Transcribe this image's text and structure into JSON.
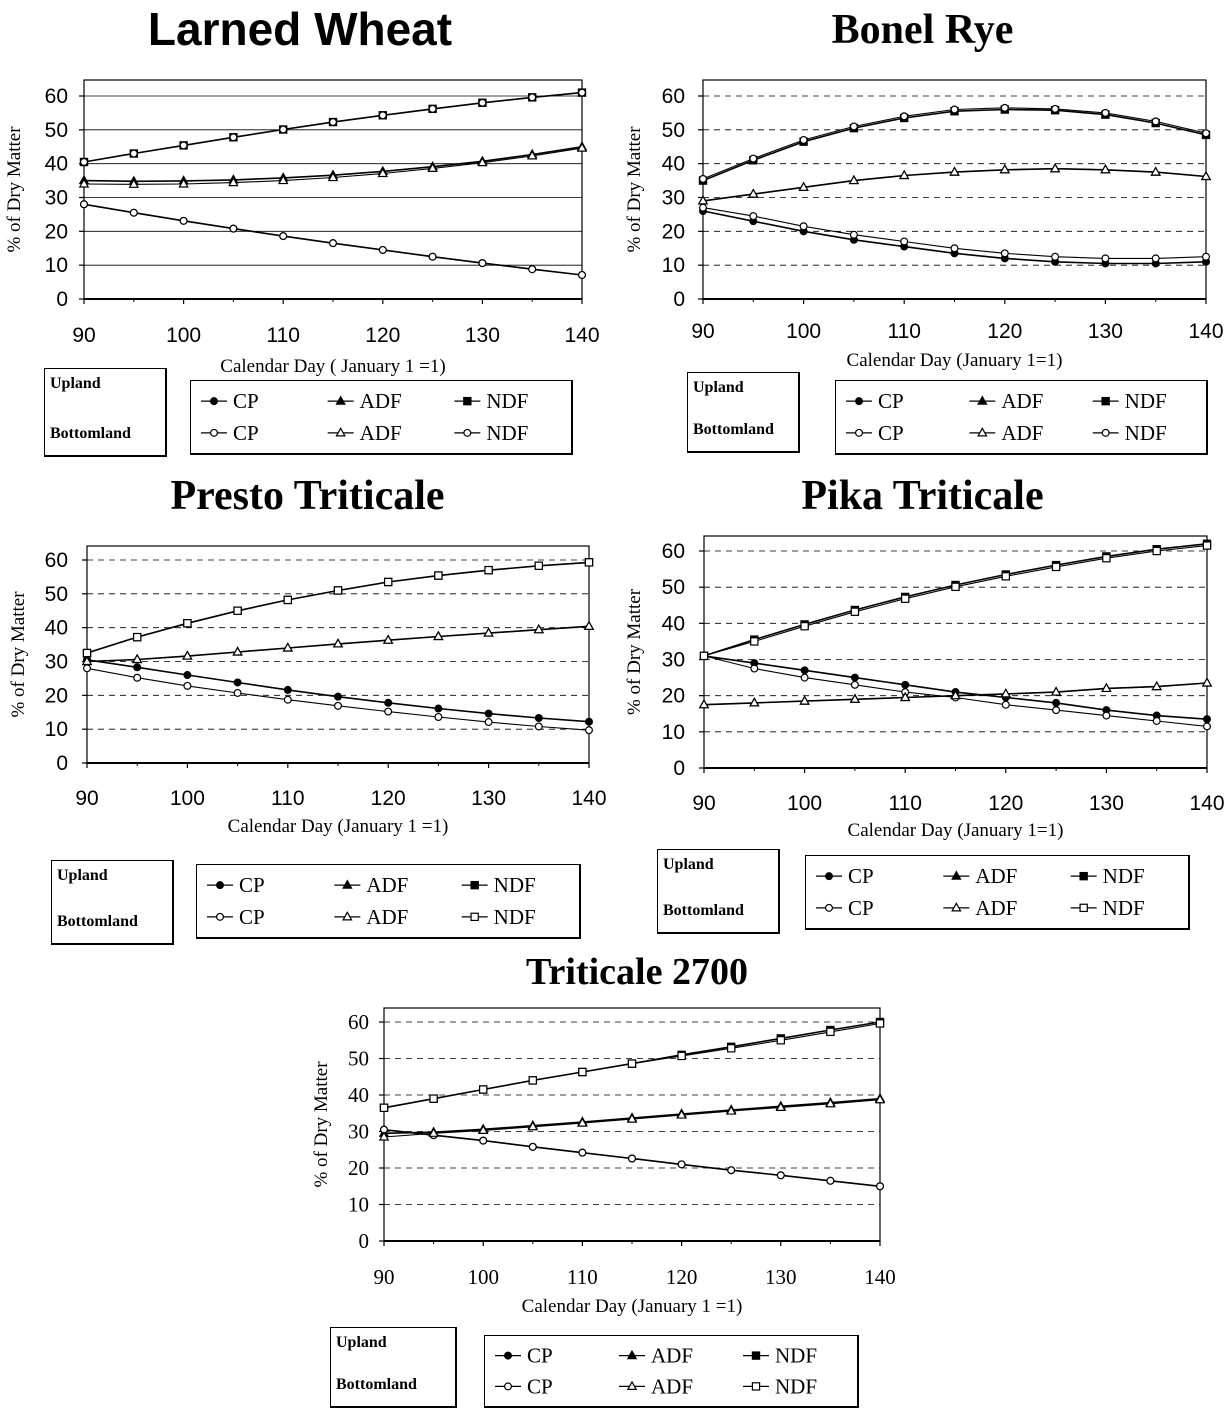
{
  "chart_data": [
    {
      "type": "line",
      "title": "Larned  Wheat",
      "xlabel": "Calendar Day ( January 1 =1)",
      "ylabel": "% of Dry Matter",
      "xlim": [
        90,
        140
      ],
      "ylim": [
        0,
        60
      ],
      "xticks": [
        "90",
        "100",
        "110",
        "120",
        "130",
        "140"
      ],
      "yticks": [
        "0",
        "10",
        "20",
        "30",
        "40",
        "50",
        "60"
      ],
      "grid": "horizontal",
      "land_labels": [
        "Upland",
        "Bottomland"
      ],
      "legend": {
        "upland": [
          "CP",
          "ADF",
          "NDF"
        ],
        "bottomland": [
          "CP",
          "ADF",
          "NDF"
        ]
      },
      "x": [
        90,
        95,
        100,
        105,
        110,
        115,
        120,
        125,
        130,
        135,
        140
      ],
      "series": [
        {
          "name": "CP",
          "group": "Upland",
          "marker": "dot-filled",
          "values": [
            28,
            25.5,
            23.1,
            20.8,
            18.6,
            16.5,
            14.5,
            12.5,
            10.6,
            8.8,
            7.1
          ]
        },
        {
          "name": "ADF",
          "group": "Upland",
          "marker": "triangle-filled",
          "values": [
            35,
            34.8,
            34.9,
            35.2,
            35.8,
            36.6,
            37.7,
            39.1,
            40.7,
            42.7,
            45
          ]
        },
        {
          "name": "NDF",
          "group": "Upland",
          "marker": "square-filled",
          "values": [
            40.5,
            43,
            45.4,
            47.8,
            50.1,
            52.3,
            54.3,
            56.2,
            58,
            59.6,
            61
          ]
        },
        {
          "name": "CP",
          "group": "Bottomland",
          "marker": "dot-open",
          "values": [
            28,
            25.5,
            23.1,
            20.8,
            18.6,
            16.5,
            14.5,
            12.5,
            10.6,
            8.8,
            7.1
          ]
        },
        {
          "name": "ADF",
          "group": "Bottomland",
          "marker": "triangle-open",
          "values": [
            34,
            33.9,
            34,
            34.4,
            35,
            35.9,
            37.1,
            38.6,
            40.3,
            42.3,
            44.6
          ]
        },
        {
          "name": "NDF",
          "group": "Bottomland",
          "marker": "dot-open",
          "values": [
            40.5,
            43,
            45.4,
            47.8,
            50.1,
            52.3,
            54.3,
            56.2,
            58,
            59.6,
            61
          ]
        }
      ]
    },
    {
      "type": "line",
      "title": "Bonel Rye",
      "xlabel": "Calendar Day (January 1=1)",
      "ylabel": "% of Dry Matter",
      "xlim": [
        90,
        140
      ],
      "ylim": [
        0,
        60
      ],
      "xticks": [
        "90",
        "100",
        "110",
        "120",
        "130",
        "140"
      ],
      "yticks": [
        "0",
        "10",
        "20",
        "30",
        "40",
        "50",
        "60"
      ],
      "grid": "horizontal",
      "land_labels": [
        "Upland",
        "Bottomland"
      ],
      "legend": {
        "upland": [
          "CP",
          "ADF",
          "NDF"
        ],
        "bottomland": [
          "CP",
          "ADF",
          "NDF"
        ]
      },
      "x": [
        90,
        95,
        100,
        105,
        110,
        115,
        120,
        125,
        130,
        135,
        140
      ],
      "series": [
        {
          "name": "CP",
          "group": "Upland",
          "marker": "dot-filled",
          "values": [
            26,
            23,
            20,
            17.5,
            15.5,
            13.5,
            12,
            11,
            10.5,
            10.5,
            11
          ]
        },
        {
          "name": "ADF",
          "group": "Upland",
          "marker": "triangle-filled",
          "values": [
            29,
            31,
            33,
            35,
            36.5,
            37.5,
            38.2,
            38.5,
            38.2,
            37.5,
            36.2
          ]
        },
        {
          "name": "NDF",
          "group": "Upland",
          "marker": "square-filled",
          "values": [
            35,
            41,
            46.5,
            50.5,
            53.5,
            55.5,
            56,
            55.8,
            54.5,
            52,
            48.5
          ]
        },
        {
          "name": "CP",
          "group": "Bottomland",
          "marker": "dot-open",
          "values": [
            27,
            24.5,
            21.5,
            19,
            17,
            15,
            13.5,
            12.5,
            12,
            12,
            12.5
          ]
        },
        {
          "name": "ADF",
          "group": "Bottomland",
          "marker": "triangle-open",
          "values": [
            29,
            31,
            33,
            35,
            36.5,
            37.5,
            38.2,
            38.5,
            38.2,
            37.5,
            36.2
          ]
        },
        {
          "name": "NDF",
          "group": "Bottomland",
          "marker": "dot-open",
          "values": [
            35.5,
            41.5,
            47,
            51,
            54,
            56,
            56.5,
            56.2,
            55,
            52.5,
            49
          ]
        }
      ]
    },
    {
      "type": "line",
      "title": "Presto Triticale",
      "xlabel": "Calendar Day (January 1 =1)",
      "ylabel": "% of Dry Matter",
      "xlim": [
        90,
        140
      ],
      "ylim": [
        0,
        60
      ],
      "xticks": [
        "90",
        "100",
        "110",
        "120",
        "130",
        "140"
      ],
      "yticks": [
        "0",
        "10",
        "20",
        "30",
        "40",
        "50",
        "60"
      ],
      "grid": "horizontal",
      "land_labels": [
        "Upland",
        "Bottomland"
      ],
      "legend": {
        "upland": [
          "CP",
          "ADF",
          "NDF"
        ],
        "bottomland": [
          "CP",
          "ADF",
          "NDF"
        ]
      },
      "x": [
        90,
        95,
        100,
        105,
        110,
        115,
        120,
        125,
        130,
        135,
        140
      ],
      "series": [
        {
          "name": "CP",
          "group": "Upland",
          "marker": "dot-filled",
          "values": [
            30.5,
            28.3,
            26,
            23.8,
            21.6,
            19.6,
            17.8,
            16.1,
            14.6,
            13.3,
            12.2
          ]
        },
        {
          "name": "ADF",
          "group": "Upland",
          "marker": "triangle-filled",
          "values": [
            30,
            30.6,
            31.6,
            32.8,
            34,
            35.2,
            36.3,
            37.4,
            38.4,
            39.4,
            40.4
          ]
        },
        {
          "name": "NDF",
          "group": "Upland",
          "marker": "square-filled",
          "values": [
            32.5,
            37.2,
            41.3,
            45,
            48.2,
            51,
            53.5,
            55.4,
            57,
            58.3,
            59.3
          ]
        },
        {
          "name": "CP",
          "group": "Bottomland",
          "marker": "dot-open",
          "values": [
            28,
            25.2,
            22.8,
            20.7,
            18.7,
            16.9,
            15.2,
            13.6,
            12.1,
            10.8,
            9.7
          ]
        },
        {
          "name": "ADF",
          "group": "Bottomland",
          "marker": "triangle-open",
          "values": [
            30,
            30.6,
            31.6,
            32.8,
            34,
            35.2,
            36.3,
            37.4,
            38.4,
            39.4,
            40.4
          ]
        },
        {
          "name": "NDF",
          "group": "Bottomland",
          "marker": "square-open",
          "values": [
            32.5,
            37.2,
            41.3,
            45,
            48.2,
            51,
            53.5,
            55.4,
            57,
            58.3,
            59.3
          ]
        }
      ]
    },
    {
      "type": "line",
      "title": "Pika Triticale",
      "xlabel": "Calendar Day (January 1=1)",
      "ylabel": "% of  Dry Matter",
      "xlim": [
        90,
        140
      ],
      "ylim": [
        0,
        60
      ],
      "xticks": [
        "90",
        "100",
        "110",
        "120",
        "130",
        "140"
      ],
      "yticks": [
        "0",
        "10",
        "20",
        "30",
        "40",
        "50",
        "60"
      ],
      "grid": "horizontal",
      "land_labels": [
        "Upland",
        "Bottomland"
      ],
      "legend": {
        "upland": [
          "CP",
          "ADF",
          "NDF"
        ],
        "bottomland": [
          "CP",
          "ADF",
          "NDF"
        ]
      },
      "x": [
        90,
        95,
        100,
        105,
        110,
        115,
        120,
        125,
        130,
        135,
        140
      ],
      "series": [
        {
          "name": "CP",
          "group": "Upland",
          "marker": "dot-filled",
          "values": [
            31,
            29,
            27,
            25,
            23,
            21,
            19.5,
            18,
            16,
            14.5,
            13.5
          ]
        },
        {
          "name": "ADF",
          "group": "Upland",
          "marker": "triangle-filled",
          "values": [
            17.5,
            18,
            18.5,
            19,
            19.5,
            20,
            20.5,
            21,
            22,
            22.5,
            23.5
          ]
        },
        {
          "name": "NDF",
          "group": "Upland",
          "marker": "square-filled",
          "values": [
            31,
            35.5,
            39.7,
            43.7,
            47.3,
            50.6,
            53.5,
            56.1,
            58.5,
            60.5,
            62
          ]
        },
        {
          "name": "CP",
          "group": "Bottomland",
          "marker": "dot-open",
          "values": [
            31,
            27.5,
            25,
            23,
            21,
            19.5,
            17.5,
            16,
            14.5,
            13,
            11.5
          ]
        },
        {
          "name": "ADF",
          "group": "Bottomland",
          "marker": "triangle-open",
          "values": [
            17.5,
            18,
            18.5,
            19,
            19.5,
            20,
            20.5,
            21,
            22,
            22.5,
            23.5
          ]
        },
        {
          "name": "NDF",
          "group": "Bottomland",
          "marker": "square-open",
          "values": [
            31,
            35,
            39.2,
            43.2,
            46.8,
            50.1,
            53,
            55.6,
            58,
            60,
            61.5
          ]
        }
      ]
    },
    {
      "type": "line",
      "title": "Triticale 2700",
      "xlabel": "Calendar Day (January 1 =1)",
      "ylabel": "% of Dry Matter",
      "xlim": [
        90,
        140
      ],
      "ylim": [
        0,
        60
      ],
      "xticks": [
        "90",
        "100",
        "110",
        "120",
        "130",
        "140"
      ],
      "yticks": [
        "0",
        "10",
        "20",
        "30",
        "40",
        "50",
        "60"
      ],
      "grid": "horizontal",
      "land_labels": [
        "Upland",
        "Bottomland"
      ],
      "legend": {
        "upland": [
          "CP",
          "ADF",
          "NDF"
        ],
        "bottomland": [
          "CP",
          "ADF",
          "NDF"
        ]
      },
      "x": [
        90,
        95,
        100,
        105,
        110,
        115,
        120,
        125,
        130,
        135,
        140
      ],
      "series": [
        {
          "name": "CP",
          "group": "Upland",
          "marker": "dot-filled",
          "values": [
            30.5,
            29,
            27.5,
            25.8,
            24.2,
            22.6,
            21,
            19.4,
            18,
            16.5,
            15
          ]
        },
        {
          "name": "ADF",
          "group": "Upland",
          "marker": "triangle-filled",
          "values": [
            29.5,
            29.8,
            30.6,
            31.6,
            32.6,
            33.7,
            34.8,
            35.9,
            36.9,
            37.9,
            39
          ]
        },
        {
          "name": "NDF",
          "group": "Upland",
          "marker": "square-filled",
          "values": [
            36.5,
            39,
            41.5,
            44,
            46.3,
            48.6,
            51,
            53.2,
            55.5,
            57.8,
            60
          ]
        },
        {
          "name": "CP",
          "group": "Bottomland",
          "marker": "dot-open",
          "values": [
            30.5,
            29,
            27.5,
            25.8,
            24.2,
            22.6,
            21,
            19.4,
            18,
            16.5,
            15
          ]
        },
        {
          "name": "ADF",
          "group": "Bottomland",
          "marker": "triangle-open",
          "values": [
            28.5,
            29.5,
            30.3,
            31.3,
            32.3,
            33.4,
            34.5,
            35.6,
            36.6,
            37.6,
            38.7
          ]
        },
        {
          "name": "NDF",
          "group": "Bottomland",
          "marker": "square-open",
          "values": [
            36.5,
            39,
            41.5,
            44,
            46.3,
            48.6,
            50.7,
            52.8,
            55,
            57.3,
            59.6
          ]
        }
      ]
    }
  ]
}
